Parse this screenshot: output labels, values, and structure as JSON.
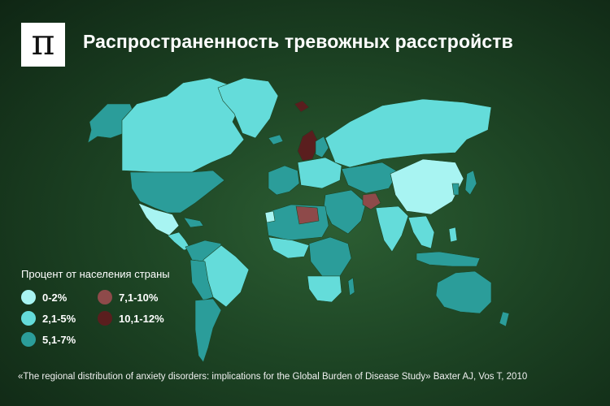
{
  "header": {
    "logo_glyph": "π",
    "title": "Распространенность тревожных расстройств"
  },
  "legend": {
    "title": "Процент от населения страны",
    "items": [
      {
        "label": "0-2%",
        "color": "#a8f4f2"
      },
      {
        "label": "7,1-10%",
        "color": "#8e4a4a"
      },
      {
        "label": "2,1-5%",
        "color": "#64dcda"
      },
      {
        "label": "10,1-12%",
        "color": "#5a1e1e"
      },
      {
        "label": "5,1-7%",
        "color": "#2b9d9a"
      }
    ]
  },
  "colors": {
    "low": "#a8f4f2",
    "mid": "#64dcda",
    "high": "#2b9d9a",
    "very_high": "#8e4a4a",
    "max": "#5a1e1e"
  },
  "source": "«The regional distribution of anxiety disorders: implications for the Global Burden of Disease Study» Baxter AJ, Vos T, 2010"
}
